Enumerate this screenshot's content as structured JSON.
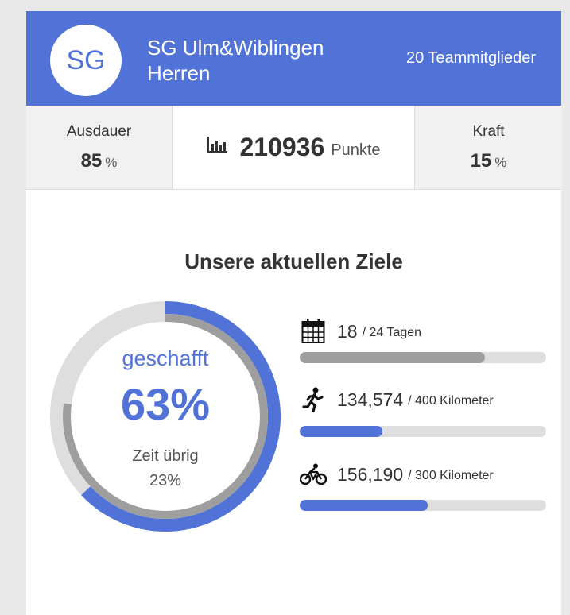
{
  "team": {
    "initials": "SG",
    "name_line1": "SG Ulm&Wiblingen",
    "name_line2": "Herren",
    "members": "20 Teammitglieder"
  },
  "stats": {
    "endurance": {
      "label": "Ausdauer",
      "value": "85",
      "unit": "%"
    },
    "points": {
      "value": "210936",
      "unit": "Punkte",
      "icon": "bar-chart-icon"
    },
    "strength": {
      "label": "Kraft",
      "value": "15",
      "unit": "%"
    }
  },
  "goals": {
    "title": "Unsere aktuellen Ziele",
    "ring": {
      "label": "geschafft",
      "percent_text": "63%",
      "achieved_fraction": 0.63,
      "time_label": "Zeit übrig",
      "time_value": "23%",
      "time_remaining_fraction": 0.23
    },
    "items": [
      {
        "icon": "calendar-icon",
        "value": "18",
        "target": "/ 24 Tagen",
        "progress": 0.75,
        "color": "#9e9e9e"
      },
      {
        "icon": "running-icon",
        "value": "134,574",
        "target": "/ 400 Kilometer",
        "progress": 0.336,
        "color": "#5173d8"
      },
      {
        "icon": "bicycle-icon",
        "value": "156,190",
        "target": "/ 300 Kilometer",
        "progress": 0.52,
        "color": "#5173d8"
      }
    ]
  },
  "colors": {
    "brand": "#5173d8",
    "grey_progress": "#9e9e9e",
    "track": "#dedede"
  }
}
